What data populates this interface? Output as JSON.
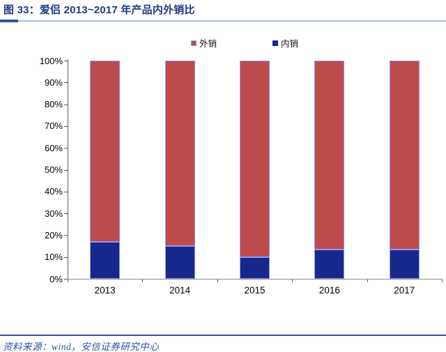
{
  "figure": {
    "title": "图 33：爱侣 2013~2017 年产品内外销比",
    "source": "资料来源：wind，安信证券研究中心"
  },
  "colors": {
    "export_fill": "#BE4B4B",
    "domestic_fill": "#17288D",
    "bar_border": "#9597EE",
    "title_blue": "#1E3A85",
    "footer_blue": "#2B4EA2",
    "title_divider_light": "#A7BCDB",
    "title_divider_dark": "#2E5395",
    "footer_divider": "#2D4E9E",
    "axis_line": "#5A5A5A"
  },
  "legend": {
    "items": [
      {
        "label": "外销",
        "color": "#BE4B4B",
        "border": "#9597EE"
      },
      {
        "label": "内销",
        "color": "#17288D",
        "border": "#17288D"
      }
    ]
  },
  "chart_data": {
    "type": "bar",
    "stacked": true,
    "categories": [
      "2013",
      "2014",
      "2015",
      "2016",
      "2017"
    ],
    "series": [
      {
        "name": "内销",
        "color": "#17288D",
        "values": [
          17,
          15,
          10,
          13.5,
          13.5
        ]
      },
      {
        "name": "外销",
        "color": "#BE4B4B",
        "values": [
          83,
          85,
          90,
          86.5,
          86.5
        ]
      }
    ],
    "unit": "%",
    "ylim": [
      0,
      100
    ],
    "ytick_step": 10,
    "yticks": [
      "0%",
      "10%",
      "20%",
      "30%",
      "40%",
      "50%",
      "60%",
      "70%",
      "80%",
      "90%",
      "100%"
    ],
    "grid": false,
    "legend_position": "top-center",
    "title": "爱侣 2013~2017 年产品内外销比"
  }
}
